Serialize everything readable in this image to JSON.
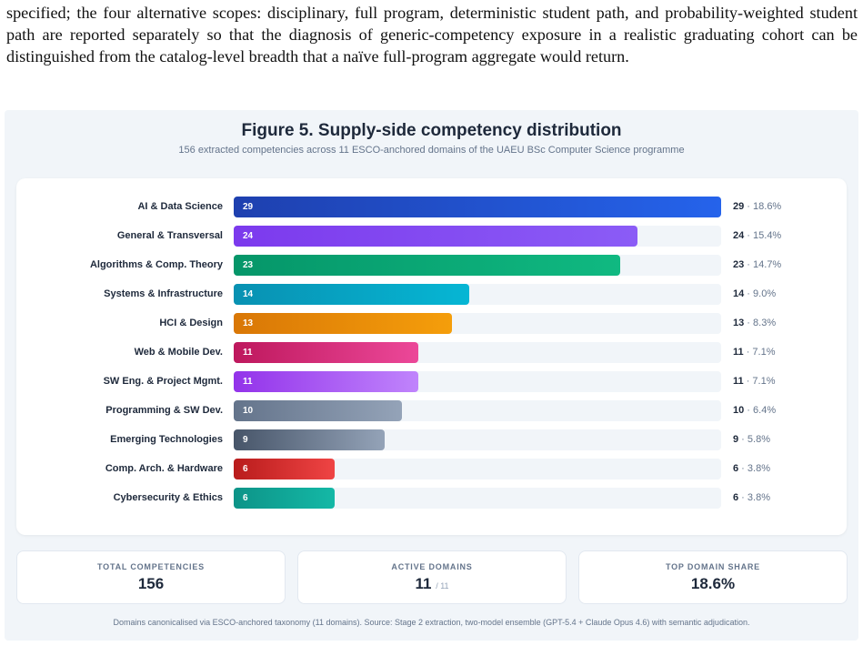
{
  "paragraph": "specified; the four alternative scopes: disciplinary, full program, deterministic student path, and probability-weighted student path are reported separately so that the diagnosis of generic-competency exposure in a realistic graduating cohort can be distinguished from the catalog-level breadth that a naïve full-program aggregate would return.",
  "figure": {
    "title": "Figure 5. Supply-side competency distribution",
    "subtitle": "156 extracted competencies across 11 ESCO-anchored domains of the UAEU BSc Computer Science programme",
    "footer": "Domains canonicalised via ESCO-anchored taxonomy (11 domains). Source: Stage 2 extraction, two-model ensemble (GPT-5.4 + Claude Opus 4.6) with semantic adjudication."
  },
  "stats": {
    "total_label": "TOTAL COMPETENCIES",
    "total_value": "156",
    "domains_label": "ACTIVE DOMAINS",
    "domains_value": "11",
    "domains_suffix": "/ 11",
    "share_label": "TOP DOMAIN SHARE",
    "share_value": "18.6%"
  },
  "chart_data": {
    "type": "bar",
    "orientation": "horizontal",
    "categories": [
      "AI & Data Science",
      "General & Transversal",
      "Algorithms & Comp. Theory",
      "Systems & Infrastructure",
      "HCI & Design",
      "Web & Mobile Dev.",
      "SW Eng. & Project Mgmt.",
      "Programming & SW Dev.",
      "Emerging Technologies",
      "Comp. Arch. & Hardware",
      "Cybersecurity & Ethics"
    ],
    "values": [
      29,
      24,
      23,
      14,
      13,
      11,
      11,
      10,
      9,
      6,
      6
    ],
    "percent_labels": [
      "18.6%",
      "15.4%",
      "14.7%",
      "9.0%",
      "8.3%",
      "7.1%",
      "7.1%",
      "6.4%",
      "5.8%",
      "3.8%",
      "3.8%"
    ],
    "xlim": [
      0,
      29
    ],
    "grid": false,
    "colors": [
      [
        "#1e40af",
        "#2563eb"
      ],
      [
        "#7c3aed",
        "#8b5cf6"
      ],
      [
        "#059669",
        "#10b981"
      ],
      [
        "#0891b2",
        "#06b6d4"
      ],
      [
        "#d97706",
        "#f59e0b"
      ],
      [
        "#be185d",
        "#ec4899"
      ],
      [
        "#9333ea",
        "#c084fc"
      ],
      [
        "#64748b",
        "#94a3b8"
      ],
      [
        "#475569",
        "#94a3b8"
      ],
      [
        "#b91c1c",
        "#ef4444"
      ],
      [
        "#0d9488",
        "#14b8a6"
      ]
    ]
  }
}
